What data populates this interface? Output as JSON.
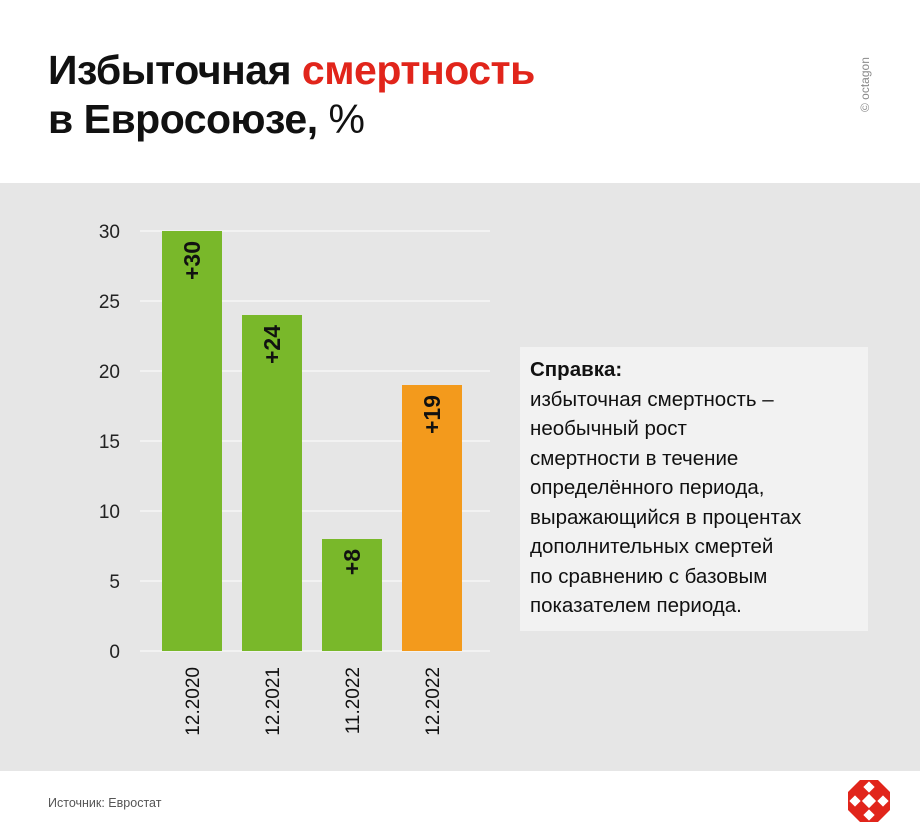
{
  "header": {
    "title_part1": "Избыточная ",
    "title_accent": "смертность",
    "title_part2": "в Евросоюзе,",
    "title_unit": " %",
    "brand": "© octagon"
  },
  "colors": {
    "accent": "#e1251b",
    "green": "#79b82a",
    "orange": "#f39a1c",
    "panel": "#e6e6e6"
  },
  "note": {
    "heading": "Справка:",
    "lines": [
      "избыточная смертность –",
      "необычный рост",
      "смертности в течение",
      "определённого периода,",
      "выражающийся в процентах",
      "дополнительных смертей",
      "по сравнению с базовым",
      "показателем периода."
    ]
  },
  "footer": {
    "source": "Источник: Евростат",
    "logo_icon": "octagon-logo-icon"
  },
  "chart_data": {
    "type": "bar",
    "title": "Избыточная смертность в Евросоюзе, %",
    "categories": [
      "12.2020",
      "12.2021",
      "11.2022",
      "12.2022"
    ],
    "values": [
      30,
      24,
      8,
      19
    ],
    "data_labels": [
      "+30",
      "+24",
      "+8",
      "+19"
    ],
    "bar_colors": [
      "#79b82a",
      "#79b82a",
      "#79b82a",
      "#f39a1c"
    ],
    "ylim": [
      0,
      30
    ],
    "yticks": [
      0,
      5,
      10,
      15,
      20,
      25,
      30
    ],
    "grid": true
  }
}
